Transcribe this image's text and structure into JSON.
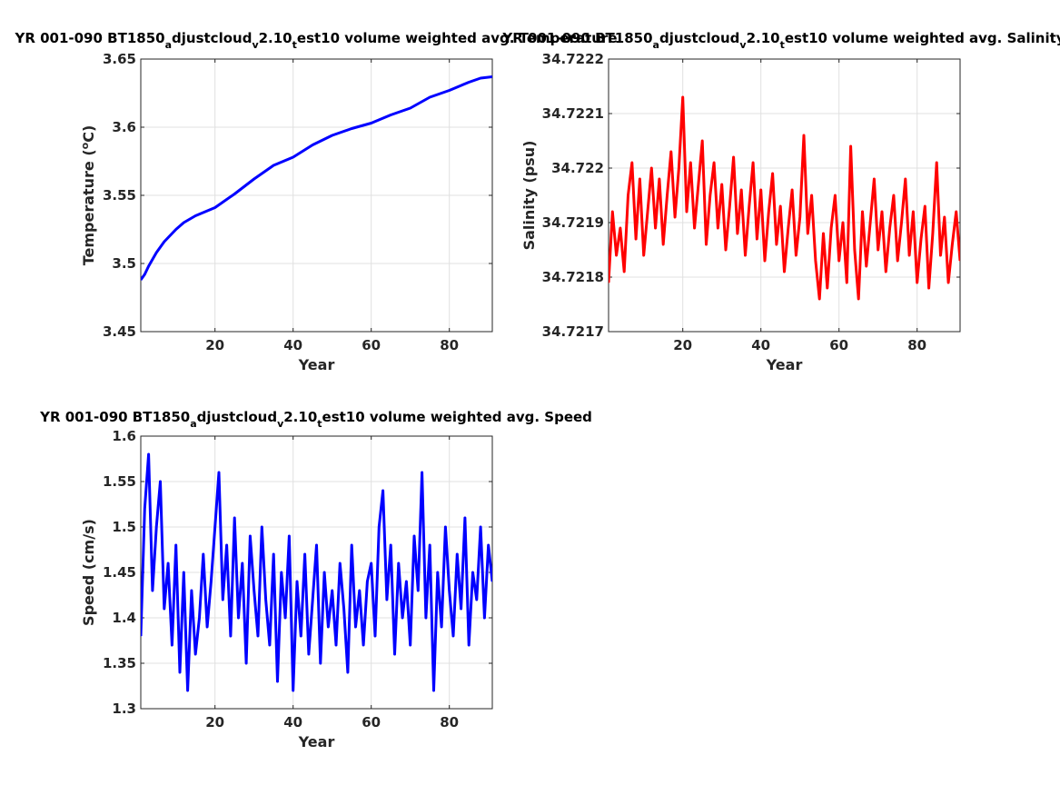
{
  "chart_data": [
    {
      "type": "line",
      "title_parts": [
        "YR 001-090 BT1850",
        "a",
        "djustcloud",
        "v",
        "2.10",
        "t",
        "est10 volume weighted avg. Temperature"
      ],
      "xlabel": "Year",
      "ylabel": "Temperature (",
      "ylabel_sup": "o",
      "ylabel_end": "C)",
      "xlim": [
        1,
        91
      ],
      "ylim": [
        3.45,
        3.65
      ],
      "xticks": [
        20,
        40,
        60,
        80
      ],
      "yticks": [
        3.45,
        3.5,
        3.55,
        3.6,
        3.65
      ],
      "ytick_labels": [
        "3.45",
        "3.5",
        "3.55",
        "3.6",
        "3.65"
      ],
      "grid": true,
      "color": "#0000ff",
      "series": [
        {
          "x": [
            1,
            2,
            3,
            4,
            5,
            6,
            7,
            8,
            9,
            10,
            12,
            15,
            20,
            25,
            30,
            35,
            40,
            45,
            50,
            55,
            60,
            65,
            70,
            75,
            80,
            85,
            88,
            91
          ],
          "y": [
            3.488,
            3.492,
            3.498,
            3.503,
            3.508,
            3.512,
            3.516,
            3.519,
            3.522,
            3.525,
            3.53,
            3.535,
            3.541,
            3.551,
            3.562,
            3.572,
            3.578,
            3.587,
            3.594,
            3.599,
            3.603,
            3.609,
            3.614,
            3.622,
            3.627,
            3.633,
            3.636,
            3.637
          ]
        }
      ]
    },
    {
      "type": "line",
      "title_parts": [
        "YR 001-090 BT1850",
        "a",
        "djustcloud",
        "v",
        "2.10",
        "t",
        "est10 volume weighted avg. Salinity"
      ],
      "xlabel": "Year",
      "ylabel": "Salinity (psu)",
      "xlim": [
        1,
        91
      ],
      "ylim": [
        34.7217,
        34.7222
      ],
      "xticks": [
        20,
        40,
        60,
        80
      ],
      "yticks": [
        34.7217,
        34.7218,
        34.7219,
        34.722,
        34.7221,
        34.7222
      ],
      "ytick_labels": [
        "34.7217",
        "34.7218",
        "34.7219",
        "34.722",
        "34.7221",
        "34.7222"
      ],
      "grid": true,
      "color": "#ff0000",
      "series": [
        {
          "x": [
            1,
            2,
            3,
            4,
            5,
            6,
            7,
            8,
            9,
            10,
            11,
            12,
            13,
            14,
            15,
            16,
            17,
            18,
            19,
            20,
            21,
            22,
            23,
            24,
            25,
            26,
            27,
            28,
            29,
            30,
            31,
            32,
            33,
            34,
            35,
            36,
            37,
            38,
            39,
            40,
            41,
            42,
            43,
            44,
            45,
            46,
            47,
            48,
            49,
            50,
            51,
            52,
            53,
            54,
            55,
            56,
            57,
            58,
            59,
            60,
            61,
            62,
            63,
            64,
            65,
            66,
            67,
            68,
            69,
            70,
            71,
            72,
            73,
            74,
            75,
            76,
            77,
            78,
            79,
            80,
            81,
            82,
            83,
            84,
            85,
            86,
            87,
            88,
            89,
            90,
            91
          ],
          "y": [
            34.72179,
            34.72192,
            34.72184,
            34.72189,
            34.72181,
            34.72195,
            34.72201,
            34.72187,
            34.72198,
            34.72184,
            34.72192,
            34.722,
            34.72189,
            34.72198,
            34.72186,
            34.72195,
            34.72203,
            34.72191,
            34.722,
            34.72213,
            34.72192,
            34.72201,
            34.72189,
            34.72197,
            34.72205,
            34.72186,
            34.72195,
            34.72201,
            34.72189,
            34.72197,
            34.72185,
            34.72193,
            34.72202,
            34.72188,
            34.72196,
            34.72184,
            34.72193,
            34.72201,
            34.72187,
            34.72196,
            34.72183,
            34.72192,
            34.72199,
            34.72186,
            34.72193,
            34.72181,
            34.72189,
            34.72196,
            34.72184,
            34.72191,
            34.72206,
            34.72188,
            34.72195,
            34.72183,
            34.72176,
            34.72188,
            34.72178,
            34.72189,
            34.72195,
            34.72183,
            34.7219,
            34.72179,
            34.72204,
            34.72185,
            34.72176,
            34.72192,
            34.72182,
            34.7219,
            34.72198,
            34.72185,
            34.72192,
            34.72181,
            34.72189,
            34.72195,
            34.72183,
            34.7219,
            34.72198,
            34.72184,
            34.72192,
            34.72179,
            34.72187,
            34.72193,
            34.72178,
            34.72188,
            34.72201,
            34.72184,
            34.72191,
            34.72179,
            34.72186,
            34.72192,
            34.72183
          ]
        }
      ]
    },
    {
      "type": "line",
      "title_parts": [
        "YR 001-090 BT1850",
        "a",
        "djustcloud",
        "v",
        "2.10",
        "t",
        "est10 volume weighted avg. Speed"
      ],
      "xlabel": "Year",
      "ylabel": "Speed (cm/s)",
      "xlim": [
        1,
        91
      ],
      "ylim": [
        1.3,
        1.6
      ],
      "xticks": [
        20,
        40,
        60,
        80
      ],
      "yticks": [
        1.3,
        1.35,
        1.4,
        1.45,
        1.5,
        1.55,
        1.6
      ],
      "ytick_labels": [
        "1.3",
        "1.35",
        "1.4",
        "1.45",
        "1.5",
        "1.55",
        "1.6"
      ],
      "grid": true,
      "color": "#0000ff",
      "series": [
        {
          "x": [
            1,
            2,
            3,
            4,
            5,
            6,
            7,
            8,
            9,
            10,
            11,
            12,
            13,
            14,
            15,
            16,
            17,
            18,
            19,
            20,
            21,
            22,
            23,
            24,
            25,
            26,
            27,
            28,
            29,
            30,
            31,
            32,
            33,
            34,
            35,
            36,
            37,
            38,
            39,
            40,
            41,
            42,
            43,
            44,
            45,
            46,
            47,
            48,
            49,
            50,
            51,
            52,
            53,
            54,
            55,
            56,
            57,
            58,
            59,
            60,
            61,
            62,
            63,
            64,
            65,
            66,
            67,
            68,
            69,
            70,
            71,
            72,
            73,
            74,
            75,
            76,
            77,
            78,
            79,
            80,
            81,
            82,
            83,
            84,
            85,
            86,
            87,
            88,
            89,
            90,
            91
          ],
          "y": [
            1.38,
            1.52,
            1.58,
            1.43,
            1.5,
            1.55,
            1.41,
            1.46,
            1.37,
            1.48,
            1.34,
            1.45,
            1.32,
            1.43,
            1.36,
            1.4,
            1.47,
            1.39,
            1.44,
            1.5,
            1.56,
            1.42,
            1.48,
            1.38,
            1.51,
            1.4,
            1.46,
            1.35,
            1.49,
            1.43,
            1.38,
            1.5,
            1.42,
            1.37,
            1.47,
            1.33,
            1.45,
            1.4,
            1.49,
            1.32,
            1.44,
            1.38,
            1.47,
            1.36,
            1.42,
            1.48,
            1.35,
            1.45,
            1.39,
            1.43,
            1.37,
            1.46,
            1.41,
            1.34,
            1.48,
            1.39,
            1.43,
            1.37,
            1.44,
            1.46,
            1.38,
            1.5,
            1.54,
            1.42,
            1.48,
            1.36,
            1.46,
            1.4,
            1.44,
            1.37,
            1.49,
            1.43,
            1.56,
            1.4,
            1.48,
            1.32,
            1.45,
            1.39,
            1.5,
            1.43,
            1.38,
            1.47,
            1.41,
            1.51,
            1.37,
            1.45,
            1.42,
            1.5,
            1.4,
            1.48,
            1.44
          ]
        }
      ]
    }
  ]
}
